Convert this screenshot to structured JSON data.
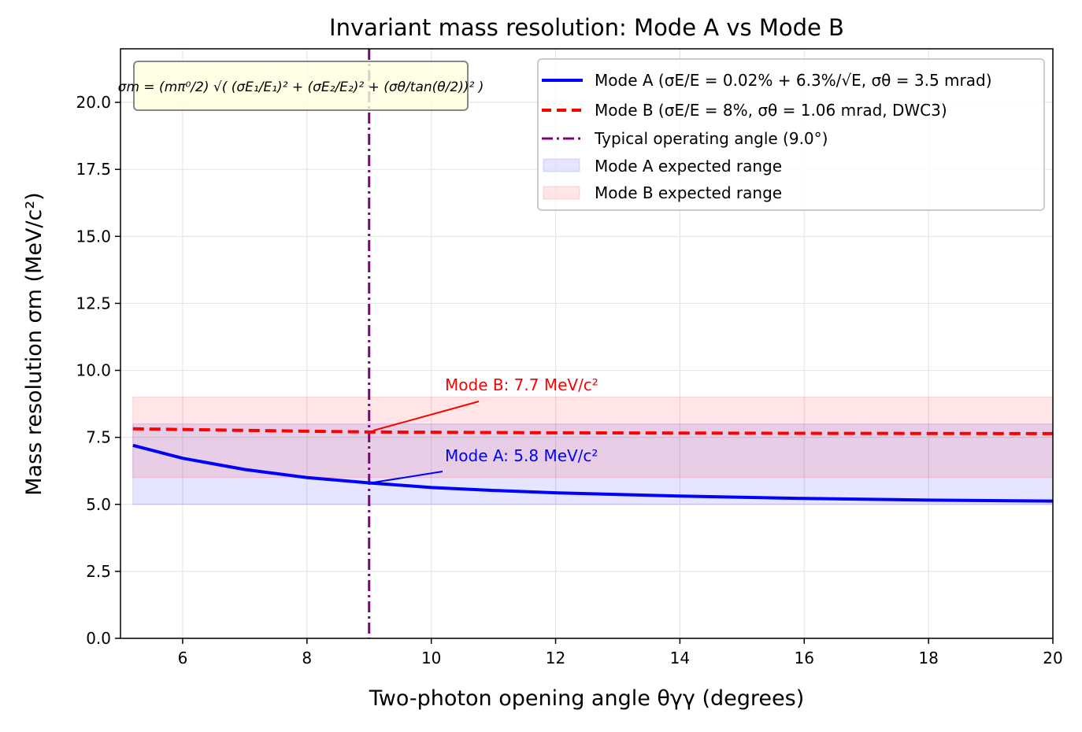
{
  "chart_data": {
    "type": "line",
    "title": "Invariant mass resolution: Mode A vs Mode B",
    "xlabel": "Two-photon opening angle θγγ (degrees)",
    "ylabel": "Mass resolution σm (MeV/c²)",
    "xlim": [
      5,
      20
    ],
    "ylim": [
      0,
      22
    ],
    "xticks": [
      6,
      8,
      10,
      12,
      14,
      16,
      18,
      20
    ],
    "yticks": [
      "0.0",
      "2.5",
      "5.0",
      "7.5",
      "10.0",
      "12.5",
      "15.0",
      "17.5",
      "20.0"
    ],
    "grid": true,
    "legend_position": "top-right",
    "formula": "σm = (mπ⁰/2) √( (σE₁/E₁)² + (σE₂/E₂)² + (σθ/tan(θ/2))² )",
    "series": [
      {
        "name": "Mode A  (σE/E = 0.02% + 6.3%/√E, σθ = 3.5 mrad)",
        "color": "#0000ff",
        "style": "solid",
        "x": [
          5.2,
          6,
          7,
          8,
          9,
          10,
          11,
          12,
          14,
          16,
          18,
          20
        ],
        "y": [
          7.2,
          6.72,
          6.3,
          6.0,
          5.8,
          5.63,
          5.52,
          5.43,
          5.31,
          5.22,
          5.16,
          5.12
        ]
      },
      {
        "name": "Mode B  (σE/E = 8%, σθ = 1.06 mrad, DWC3)",
        "color": "#ff0000",
        "style": "dashed",
        "x": [
          5.2,
          7,
          9,
          12,
          16,
          20
        ],
        "y": [
          7.82,
          7.76,
          7.7,
          7.67,
          7.65,
          7.64
        ]
      }
    ],
    "vline": {
      "name": "Typical operating angle (9.0°)",
      "x": 9.0,
      "color": "#800080",
      "style": "dashdot"
    },
    "bands": [
      {
        "name": "Mode A expected range",
        "y": [
          5,
          8
        ],
        "x": [
          5.2,
          20
        ],
        "color": "#0000ff"
      },
      {
        "name": "Mode B expected range",
        "y": [
          6,
          9
        ],
        "x": [
          5.2,
          20
        ],
        "color": "#ff0000"
      }
    ],
    "annotations": [
      {
        "text": "Mode B: 7.7 MeV/c²",
        "point": [
          9,
          7.7
        ],
        "color": "#ff0000"
      },
      {
        "text": "Mode A: 5.8 MeV/c²",
        "point": [
          9,
          5.8
        ],
        "color": "#0000ff"
      }
    ]
  }
}
